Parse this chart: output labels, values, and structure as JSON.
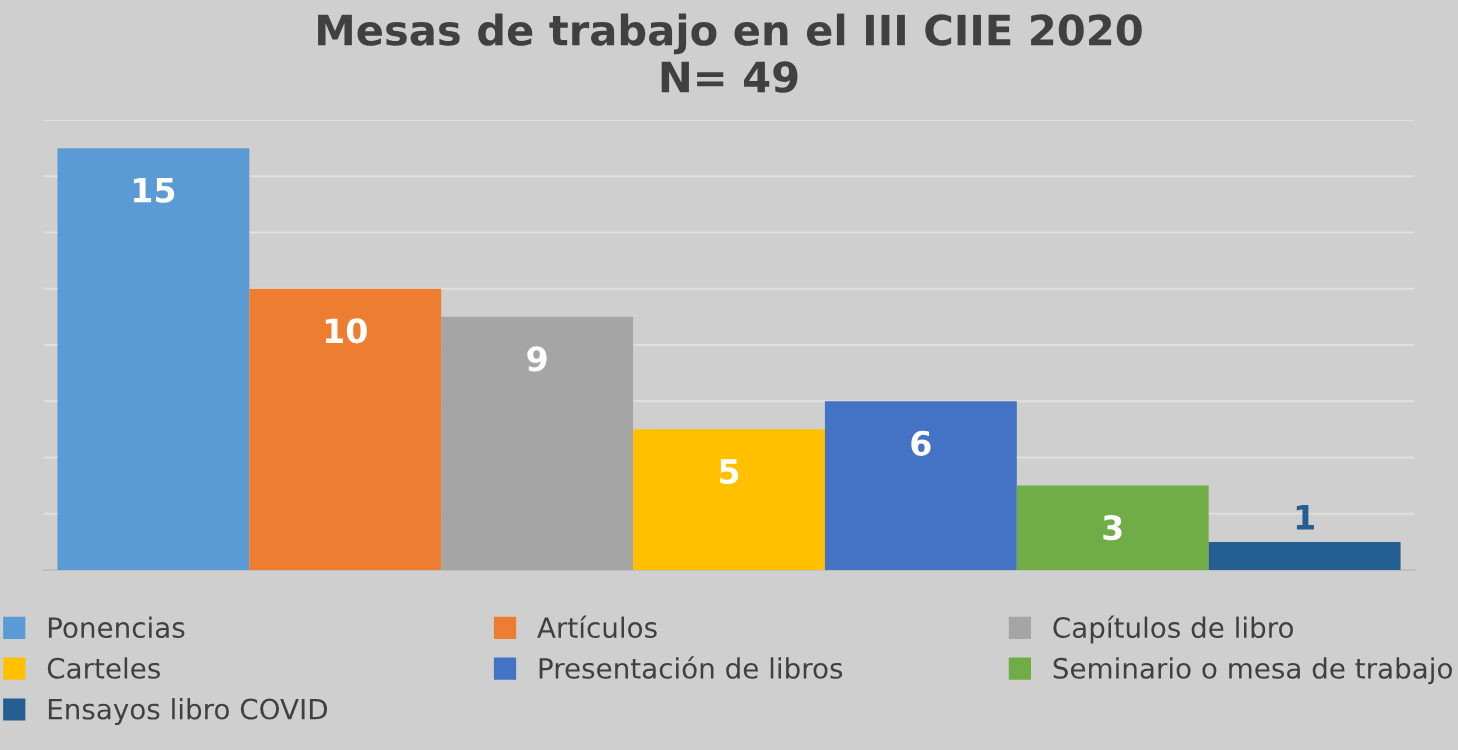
{
  "chart_data": {
    "type": "bar",
    "title": "Mesas de trabajo en el III CIIE 2020\nN= 49",
    "categories": [
      null
    ],
    "series": [
      {
        "name": "Ponencias",
        "color": "#5b9bd5",
        "values": [
          15
        ]
      },
      {
        "name": "Artículos",
        "color": "#ed7d31",
        "values": [
          10
        ]
      },
      {
        "name": "Capítulos de libro",
        "color": "#a5a5a5",
        "values": [
          9
        ]
      },
      {
        "name": "Carteles",
        "color": "#ffc000",
        "values": [
          5
        ]
      },
      {
        "name": "Presentación de libros",
        "color": "#4472c4",
        "values": [
          6
        ]
      },
      {
        "name": "Seminario o mesa de trabajo",
        "color": "#70ad47",
        "values": [
          3
        ]
      },
      {
        "name": "Ensayos libro COVID",
        "color": "#255e91",
        "values": [
          1
        ]
      }
    ],
    "ylim": [
      0,
      16
    ],
    "yticks": [
      {
        "value": 0,
        "label": null
      },
      {
        "value": 2,
        "label": null
      },
      {
        "value": 4,
        "label": null
      },
      {
        "value": 6,
        "label": null
      },
      {
        "value": 8,
        "label": null
      },
      {
        "value": 10,
        "label": null
      },
      {
        "value": 12,
        "label": null
      },
      {
        "value": 14,
        "label": null
      },
      {
        "value": 16,
        "label": null
      }
    ],
    "grid": "y",
    "legend": "bottom",
    "data_labels": true
  }
}
